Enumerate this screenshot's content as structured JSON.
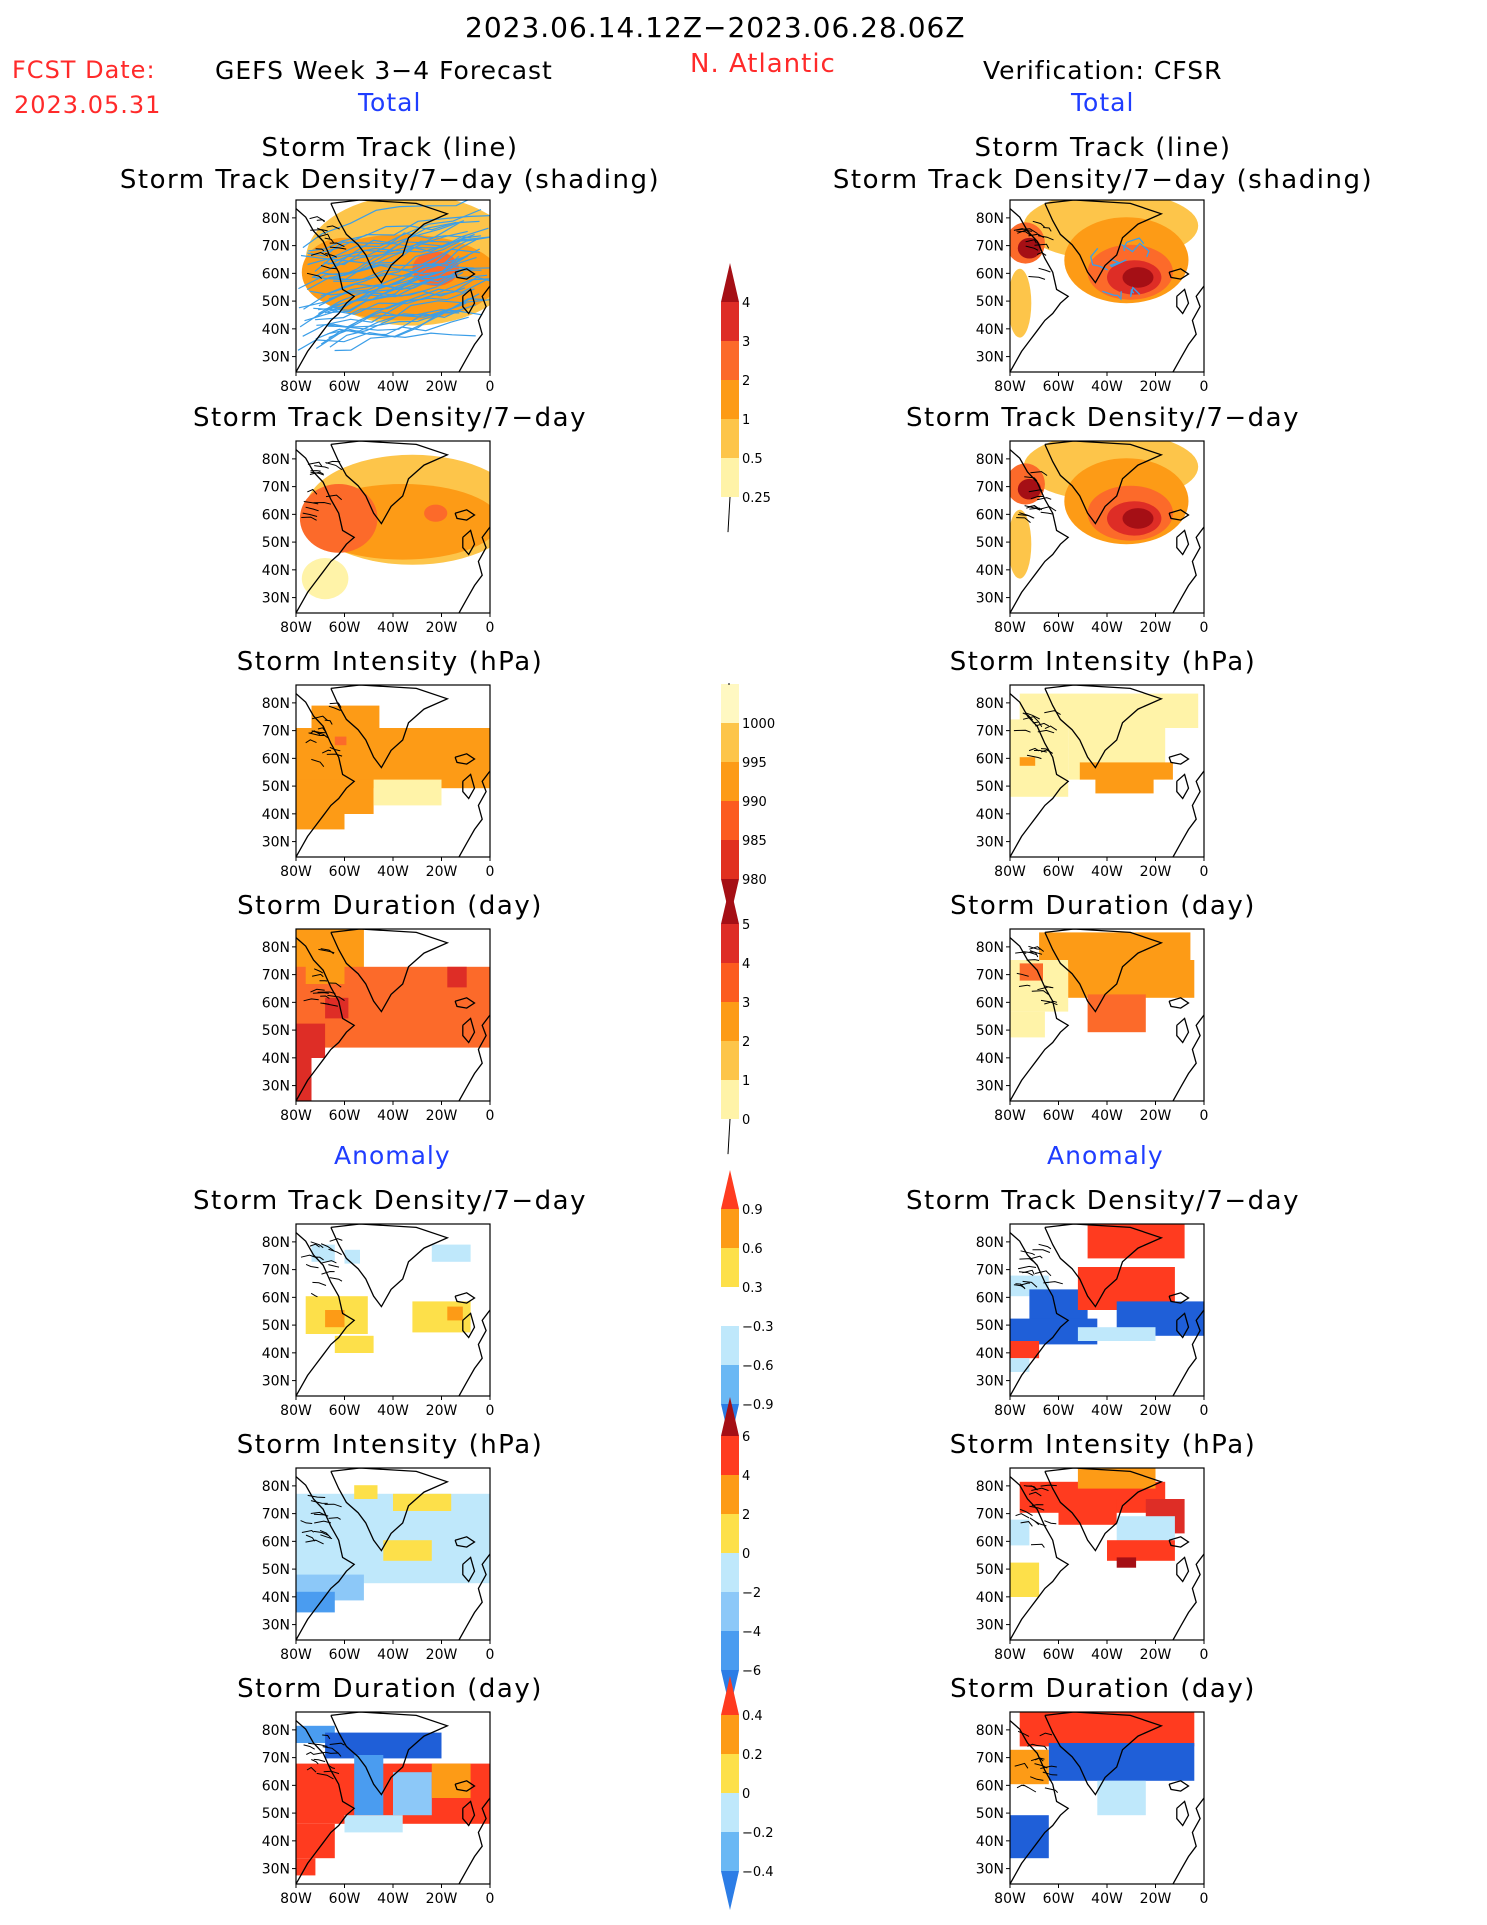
{
  "header": {
    "period": "2023.06.14.12Z−2023.06.28.06Z",
    "fcst_label": "FCST Date:",
    "fcst_date": "2023.05.31",
    "forecast_label": "GEFS Week 3−4 Forecast",
    "region": "N. Atlantic",
    "verification_label": "Verification: CFSR",
    "total_left": "Total",
    "total_right": "Total",
    "anomaly_left": "Anomaly",
    "anomaly_right": "Anomaly"
  },
  "colors": {
    "title_red": "#ff2a2a",
    "title_blue": "#1f3dff",
    "track_line": "#3b9ee8",
    "ocean": "#ffffff",
    "coast": "#000000"
  },
  "chart_data": [
    {
      "type": "heatmap",
      "panel": "forecast-total-track",
      "title": "Storm Track (line)",
      "subtitle": "Storm Track Density/7−day (shading)",
      "x_ticks": [
        "80W",
        "60W",
        "40W",
        "20W",
        "0"
      ],
      "y_ticks": [
        "80N",
        "70N",
        "60N",
        "50N",
        "40N",
        "30N"
      ],
      "xlim": [
        -80,
        0
      ],
      "ylim": [
        25,
        85
      ],
      "description_values": {
        "peak_density": 1,
        "region_of_max": "55N 20W"
      }
    },
    {
      "type": "heatmap",
      "panel": "verification-total-track",
      "title": "Storm Track (line)",
      "subtitle": "Storm Track Density/7−day (shading)",
      "x_ticks": [
        "80W",
        "60W",
        "40W",
        "20W",
        "0"
      ],
      "y_ticks": [
        "80N",
        "70N",
        "60N",
        "50N",
        "40N",
        "30N"
      ],
      "xlim": [
        -80,
        0
      ],
      "ylim": [
        25,
        85
      ],
      "description_values": {
        "peak_density": 4,
        "region_of_max": "60N 30W"
      }
    },
    {
      "type": "heatmap",
      "panel": "forecast-total-density",
      "title": "Storm Track Density/7−day",
      "x_ticks": [
        "80W",
        "60W",
        "40W",
        "20W",
        "0"
      ],
      "y_ticks": [
        "80N",
        "70N",
        "60N",
        "50N",
        "40N",
        "30N"
      ]
    },
    {
      "type": "heatmap",
      "panel": "verification-total-density",
      "title": "Storm Track Density/7−day",
      "x_ticks": [
        "80W",
        "60W",
        "40W",
        "20W",
        "0"
      ],
      "y_ticks": [
        "80N",
        "70N",
        "60N",
        "50N",
        "40N",
        "30N"
      ]
    },
    {
      "type": "heatmap",
      "panel": "forecast-total-intensity",
      "title": "Storm Intensity (hPa)",
      "x_ticks": [
        "80W",
        "60W",
        "40W",
        "20W",
        "0"
      ],
      "y_ticks": [
        "80N",
        "70N",
        "60N",
        "50N",
        "40N",
        "30N"
      ]
    },
    {
      "type": "heatmap",
      "panel": "verification-total-intensity",
      "title": "Storm Intensity (hPa)",
      "x_ticks": [
        "80W",
        "60W",
        "40W",
        "20W",
        "0"
      ],
      "y_ticks": [
        "80N",
        "70N",
        "60N",
        "50N",
        "40N",
        "30N"
      ]
    },
    {
      "type": "heatmap",
      "panel": "forecast-total-duration",
      "title": "Storm Duration (day)",
      "x_ticks": [
        "80W",
        "60W",
        "40W",
        "20W",
        "0"
      ],
      "y_ticks": [
        "80N",
        "70N",
        "60N",
        "50N",
        "40N",
        "30N"
      ]
    },
    {
      "type": "heatmap",
      "panel": "verification-total-duration",
      "title": "Storm Duration (day)",
      "x_ticks": [
        "80W",
        "60W",
        "40W",
        "20W",
        "0"
      ],
      "y_ticks": [
        "80N",
        "70N",
        "60N",
        "50N",
        "40N",
        "30N"
      ]
    },
    {
      "type": "heatmap",
      "panel": "forecast-anomaly-density",
      "title": "Storm Track Density/7−day",
      "x_ticks": [
        "80W",
        "60W",
        "40W",
        "20W",
        "0"
      ],
      "y_ticks": [
        "80N",
        "70N",
        "60N",
        "50N",
        "40N",
        "30N"
      ]
    },
    {
      "type": "heatmap",
      "panel": "verification-anomaly-density",
      "title": "Storm Track Density/7−day",
      "x_ticks": [
        "80W",
        "60W",
        "40W",
        "20W",
        "0"
      ],
      "y_ticks": [
        "80N",
        "70N",
        "60N",
        "50N",
        "40N",
        "30N"
      ]
    },
    {
      "type": "heatmap",
      "panel": "forecast-anomaly-intensity",
      "title": "Storm Intensity (hPa)",
      "x_ticks": [
        "80W",
        "60W",
        "40W",
        "20W",
        "0"
      ],
      "y_ticks": [
        "80N",
        "70N",
        "60N",
        "50N",
        "40N",
        "30N"
      ]
    },
    {
      "type": "heatmap",
      "panel": "verification-anomaly-intensity",
      "title": "Storm Intensity (hPa)",
      "x_ticks": [
        "80W",
        "60W",
        "40W",
        "20W",
        "0"
      ],
      "y_ticks": [
        "80N",
        "70N",
        "60N",
        "50N",
        "40N",
        "30N"
      ]
    },
    {
      "type": "heatmap",
      "panel": "forecast-anomaly-duration",
      "title": "Storm Duration (day)",
      "x_ticks": [
        "80W",
        "60W",
        "40W",
        "20W",
        "0"
      ],
      "y_ticks": [
        "80N",
        "70N",
        "60N",
        "50N",
        "40N",
        "30N"
      ]
    },
    {
      "type": "heatmap",
      "panel": "verification-anomaly-duration",
      "title": "Storm Duration (day)",
      "x_ticks": [
        "80W",
        "60W",
        "40W",
        "20W",
        "0"
      ],
      "y_ticks": [
        "80N",
        "70N",
        "60N",
        "50N",
        "40N",
        "30N"
      ]
    }
  ],
  "colorbars": [
    {
      "name": "density",
      "labels": [
        "4",
        "3",
        "2",
        "1",
        "0.5",
        "0.25"
      ],
      "colors": [
        "#a50f15",
        "#de2d26",
        "#fc6a2a",
        "#fd9b16",
        "#fdc54a",
        "#fff3a8"
      ]
    },
    {
      "name": "intensity",
      "labels": [
        "1000",
        "995",
        "990",
        "985",
        "980"
      ],
      "colors": [
        "#fff8c2",
        "#fdc54a",
        "#fd9b16",
        "#fc5b1f",
        "#e1301f",
        "#a50f15"
      ]
    },
    {
      "name": "duration",
      "labels": [
        "5",
        "4",
        "3",
        "2",
        "1",
        "0"
      ],
      "colors": [
        "#a50f15",
        "#de2d26",
        "#fc5b1f",
        "#fd9b16",
        "#fdc54a",
        "#fff3a8"
      ]
    },
    {
      "name": "density-anom",
      "labels": [
        "0.9",
        "0.6",
        "0.3",
        "−0.3",
        "−0.6",
        "−0.9"
      ],
      "colors": [
        "#ff3b1f",
        "#fd9b16",
        "#fde04a",
        "#ffffff",
        "#bfe8fb",
        "#6ab8f4",
        "#2c7de6"
      ]
    },
    {
      "name": "intensity-anom",
      "labels": [
        "6",
        "4",
        "2",
        "0",
        "−2",
        "−4",
        "−6"
      ],
      "colors": [
        "#a50f15",
        "#ff3b1f",
        "#fd9b16",
        "#fde04a",
        "#bfe8fb",
        "#8cc8f8",
        "#4a9cf0",
        "#2c7de6"
      ]
    },
    {
      "name": "duration-anom",
      "labels": [
        "0.4",
        "0.2",
        "0",
        "−0.2",
        "−0.4"
      ],
      "colors": [
        "#ff3b1f",
        "#fd9b16",
        "#fde04a",
        "#bfe8fb",
        "#6ab8f4",
        "#2c7de6"
      ]
    }
  ]
}
